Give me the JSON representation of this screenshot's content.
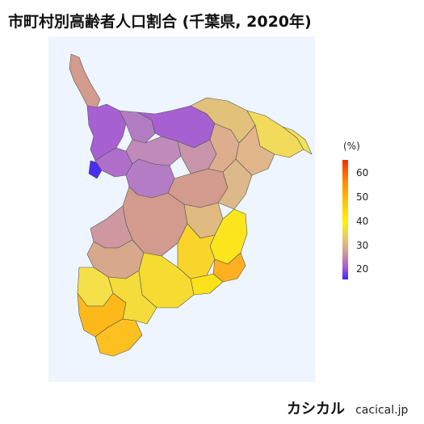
{
  "title": "市町村別高齢者人口割合 (千葉県, 2020年)",
  "legend": {
    "title": "(%)",
    "ticks": [
      "60",
      "50",
      "40",
      "30",
      "20"
    ],
    "tick_values": [
      60,
      50,
      40,
      30,
      20
    ],
    "min": 16,
    "max": 66,
    "colors": [
      "#3a28ff",
      "#a85ad8",
      "#d29898",
      "#e8c870",
      "#fff200",
      "#ffd400",
      "#ff8a00",
      "#ff2a00"
    ]
  },
  "map": {
    "region": "千葉県",
    "background": "#eef5ff"
  },
  "brand": {
    "logo": "カシカル",
    "site": "cacical.jp"
  }
}
